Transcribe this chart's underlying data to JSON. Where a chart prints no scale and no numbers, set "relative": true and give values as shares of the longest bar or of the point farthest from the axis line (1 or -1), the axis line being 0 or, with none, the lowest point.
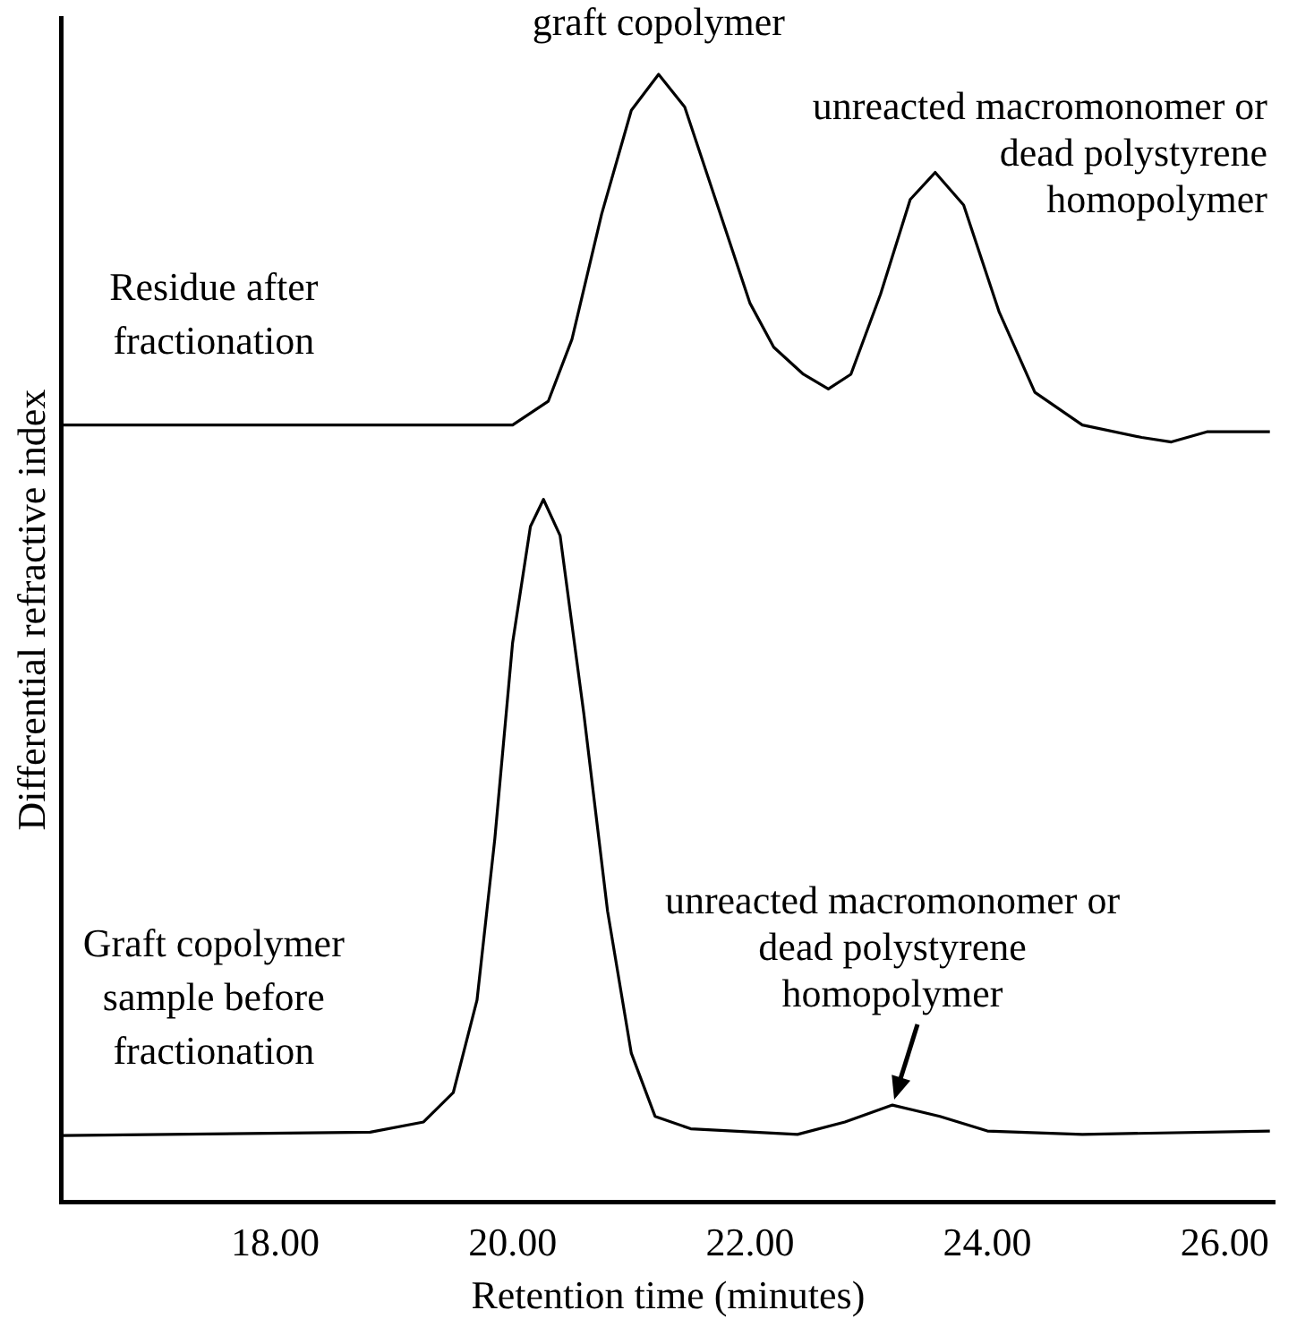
{
  "chart_data": {
    "type": "line",
    "relative": true,
    "xlabel": "Retention time (minutes)",
    "ylabel": "Differential refractive index",
    "xlim": [
      16.2,
      26.42
    ],
    "xticks": [
      {
        "value": 18,
        "label": "18.00"
      },
      {
        "value": 20,
        "label": "20.00"
      },
      {
        "value": 22,
        "label": "22.00"
      },
      {
        "value": 24,
        "label": "24.00"
      },
      {
        "value": 26,
        "label": "26.00"
      }
    ],
    "tick_labels": "x",
    "grid": false,
    "legend": false,
    "marker": "none",
    "line_style": "solid",
    "series": [
      {
        "name": "Residue after\nfractionation",
        "color": "#000000",
        "x": [
          16.2,
          20.0,
          20.3,
          20.5,
          20.75,
          21.0,
          21.23,
          21.45,
          21.7,
          22.0,
          22.2,
          22.45,
          22.66,
          22.85,
          23.1,
          23.35,
          23.56,
          23.8,
          24.1,
          24.4,
          24.8,
          25.3,
          25.55,
          25.85,
          26.38
        ],
        "values": [
          0.689,
          0.689,
          0.71,
          0.765,
          0.876,
          0.968,
          1,
          0.971,
          0.892,
          0.797,
          0.758,
          0.734,
          0.721,
          0.734,
          0.805,
          0.889,
          0.913,
          0.884,
          0.789,
          0.718,
          0.689,
          0.678,
          0.674,
          0.683,
          0.683
        ]
      },
      {
        "name": "Graft copolymer\nsample before\nfractionation",
        "color": "#000000",
        "x": [
          16.2,
          18.8,
          19.25,
          19.5,
          19.7,
          19.85,
          20.0,
          20.15,
          20.26,
          20.4,
          20.6,
          20.8,
          21.0,
          21.2,
          21.5,
          22.4,
          22.8,
          23.2,
          23.6,
          24.0,
          24.8,
          26.38
        ],
        "values": [
          0.059,
          0.062,
          0.071,
          0.097,
          0.179,
          0.322,
          0.496,
          0.599,
          0.623,
          0.591,
          0.433,
          0.258,
          0.132,
          0.076,
          0.065,
          0.06,
          0.071,
          0.086,
          0.076,
          0.063,
          0.06,
          0.063
        ]
      }
    ],
    "annotations": [
      {
        "text": "graft copolymer",
        "x": 21.23,
        "y": 1
      },
      {
        "text": "unreacted macromonomer or\ndead polystyrene\nhomopolymer",
        "x": 23.56,
        "y": 0.913
      },
      {
        "text": "unreacted macromonomer or\ndead polystyrene\nhomopolymer",
        "x": 23.2,
        "y": 0.086
      }
    ]
  }
}
